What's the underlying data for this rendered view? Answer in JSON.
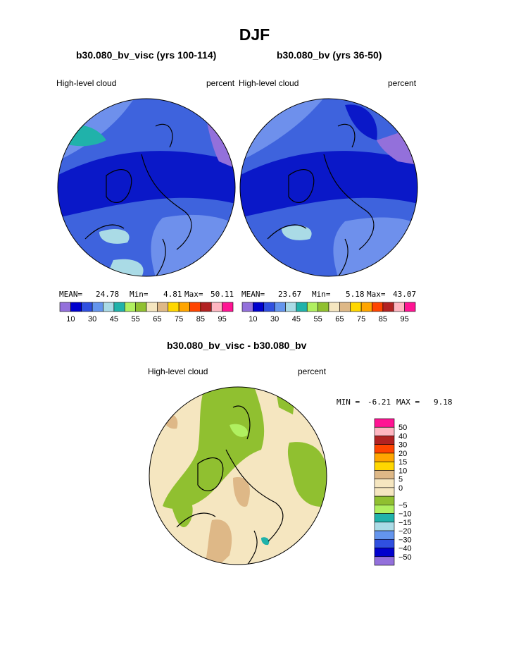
{
  "page": {
    "title": "DJF"
  },
  "chart_data": [
    {
      "type": "heatmap",
      "projection": "polar-stereographic",
      "title": "b30.080_bv_visc (yrs 100-114)",
      "left_label": "High-level cloud",
      "right_label": "percent",
      "stats": {
        "mean_label": "MEAN=",
        "mean": "24.78",
        "min_label": "Min=",
        "min": "4.81",
        "max_label": "Max=",
        "max": "50.11"
      },
      "colorbar": {
        "levels": [
          "10",
          "30",
          "45",
          "55",
          "65",
          "75",
          "85",
          "95"
        ],
        "colors": [
          "#9370db",
          "#0000cd",
          "#3050e0",
          "#6495ed",
          "#aadbe6",
          "#20b2aa",
          "#b0f060",
          "#90c030",
          "#f5e6c0",
          "#deb887",
          "#ffd700",
          "#ffa500",
          "#ff4500",
          "#b22222",
          "#ffb6c1",
          "#ff1493"
        ]
      }
    },
    {
      "type": "heatmap",
      "projection": "polar-stereographic",
      "title": "b30.080_bv (yrs 36-50)",
      "left_label": "High-level cloud",
      "right_label": "percent",
      "stats": {
        "mean_label": "MEAN=",
        "mean": "23.67",
        "min_label": "Min=",
        "min": "5.18",
        "max_label": "Max=",
        "max": "43.07"
      },
      "colorbar": {
        "levels": [
          "10",
          "30",
          "45",
          "55",
          "65",
          "75",
          "85",
          "95"
        ],
        "colors": [
          "#9370db",
          "#0000cd",
          "#3050e0",
          "#6495ed",
          "#aadbe6",
          "#20b2aa",
          "#b0f060",
          "#90c030",
          "#f5e6c0",
          "#deb887",
          "#ffd700",
          "#ffa500",
          "#ff4500",
          "#b22222",
          "#ffb6c1",
          "#ff1493"
        ]
      }
    },
    {
      "type": "heatmap",
      "projection": "polar-stereographic",
      "title": "b30.080_bv_visc - b30.080_bv",
      "left_label": "High-level cloud",
      "right_label": "percent",
      "stats": {
        "min_label": "MIN =",
        "min": "-6.21",
        "max_label": "MAX =",
        "max": "9.18"
      },
      "colorbar": {
        "orientation": "vertical",
        "levels": [
          "50",
          "40",
          "30",
          "20",
          "15",
          "10",
          "5",
          "0",
          "−5",
          "−10",
          "−15",
          "−20",
          "−30",
          "−40",
          "−50"
        ],
        "colors": [
          "#ff1493",
          "#ffb6c1",
          "#b22222",
          "#ff4500",
          "#ffa500",
          "#ffd700",
          "#deb887",
          "#f5e6c0",
          "#f5e6c0",
          "#90c030",
          "#b0f060",
          "#20b2aa",
          "#aadbe6",
          "#6495ed",
          "#3050e0",
          "#0000cd",
          "#9370db"
        ]
      }
    }
  ]
}
